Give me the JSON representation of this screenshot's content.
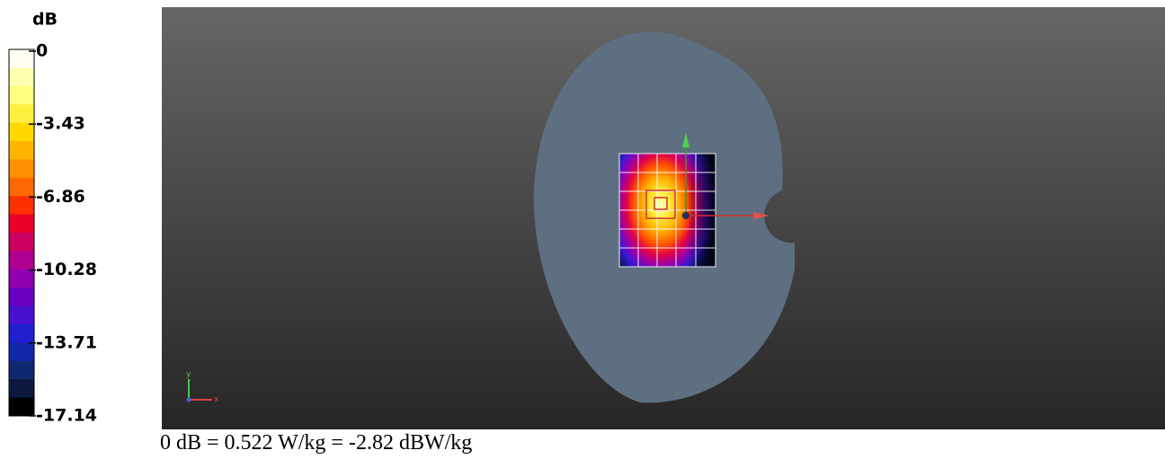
{
  "colorbar": {
    "unit": "dB",
    "ticks": [
      "0",
      "-3.43",
      "-6.86",
      "-10.28",
      "-13.71",
      "-17.14"
    ]
  },
  "axes_triad": {
    "x": "x",
    "y": "y"
  },
  "caption": "0 dB = 0.522 W/kg = -2.82 dBW/kg"
}
